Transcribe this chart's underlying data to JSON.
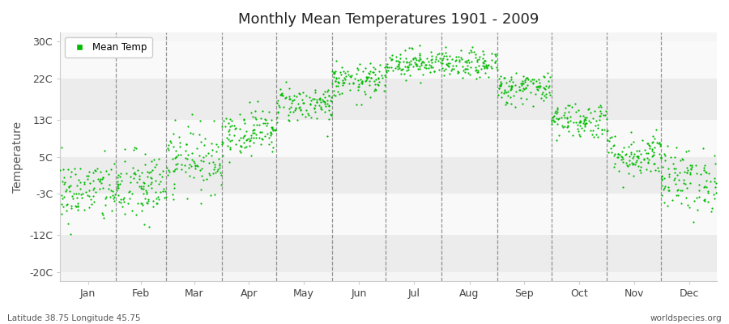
{
  "title": "Monthly Mean Temperatures 1901 - 2009",
  "ylabel": "Temperature",
  "xlabel_labels": [
    "Jan",
    "Feb",
    "Mar",
    "Apr",
    "May",
    "Jun",
    "Jul",
    "Aug",
    "Sep",
    "Oct",
    "Nov",
    "Dec"
  ],
  "ytick_values": [
    -20,
    -12,
    -3,
    5,
    13,
    22,
    30
  ],
  "ytick_labels": [
    "-20C",
    "-12C",
    "-3C",
    "5C",
    "13C",
    "22C",
    "30C"
  ],
  "ylim": [
    -22,
    32
  ],
  "dot_color": "#00bb00",
  "dot_size": 2.5,
  "background_color": "#f5f5f5",
  "band_color_a": "#ececec",
  "band_color_b": "#f9f9f9",
  "legend_label": "Mean Temp",
  "footer_left": "Latitude 38.75 Longitude 45.75",
  "footer_right": "worldspecies.org",
  "monthly_means": [
    -2.5,
    -1.8,
    4.5,
    10.5,
    16.5,
    21.5,
    25.5,
    25.0,
    20.0,
    13.0,
    5.5,
    0.0
  ],
  "monthly_stds": [
    3.5,
    4.0,
    3.5,
    2.5,
    2.0,
    1.8,
    1.5,
    1.5,
    1.8,
    2.0,
    2.5,
    3.5
  ],
  "n_years": 109,
  "seed": 42,
  "month_days": [
    31,
    28,
    31,
    30,
    31,
    30,
    31,
    31,
    30,
    31,
    30,
    31
  ],
  "total_days": 365
}
